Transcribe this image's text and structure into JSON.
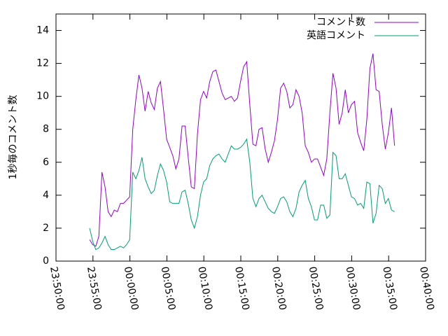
{
  "chart_data": {
    "type": "line",
    "ylabel": "1秒毎のコメント数",
    "x": [
      "23:54:33",
      "23:54:58",
      "23:55:23",
      "23:55:48",
      "23:56:13",
      "23:56:38",
      "23:57:03",
      "23:57:28",
      "23:57:53",
      "23:58:18",
      "23:58:43",
      "23:59:08",
      "23:59:33",
      "23:59:58",
      "00:00:23",
      "00:00:48",
      "00:01:13",
      "00:01:38",
      "00:02:03",
      "00:02:28",
      "00:02:53",
      "00:03:18",
      "00:03:43",
      "00:04:08",
      "00:04:33",
      "00:04:58",
      "00:05:23",
      "00:05:48",
      "00:06:13",
      "00:06:38",
      "00:07:03",
      "00:07:28",
      "00:07:53",
      "00:08:18",
      "00:08:43",
      "00:09:08",
      "00:09:33",
      "00:09:58",
      "00:10:23",
      "00:10:48",
      "00:11:13",
      "00:11:38",
      "00:12:03",
      "00:12:28",
      "00:12:53",
      "00:13:18",
      "00:13:43",
      "00:14:08",
      "00:14:33",
      "00:14:58",
      "00:15:23",
      "00:15:48",
      "00:16:13",
      "00:16:38",
      "00:17:03",
      "00:17:28",
      "00:17:53",
      "00:18:18",
      "00:18:43",
      "00:19:08",
      "00:19:33",
      "00:19:58",
      "00:20:23",
      "00:20:48",
      "00:21:13",
      "00:21:38",
      "00:22:03",
      "00:22:28",
      "00:22:53",
      "00:23:18",
      "00:23:43",
      "00:24:08",
      "00:24:33",
      "00:24:58",
      "00:25:23",
      "00:25:48",
      "00:26:13",
      "00:26:38",
      "00:27:03",
      "00:27:28",
      "00:27:53",
      "00:28:18",
      "00:28:43",
      "00:29:08",
      "00:29:33",
      "00:29:58",
      "00:30:23",
      "00:30:48",
      "00:31:13",
      "00:31:38",
      "00:32:03",
      "00:32:28",
      "00:32:53",
      "00:33:18",
      "00:33:43",
      "00:34:08",
      "00:34:33",
      "00:34:58",
      "00:35:23",
      "00:35:48"
    ],
    "series": [
      {
        "name": "コメント数",
        "color": "#9400d3",
        "values": [
          1.3,
          1.0,
          0.9,
          1.5,
          5.4,
          4.5,
          3.0,
          2.7,
          3.1,
          3.0,
          3.5,
          3.5,
          3.7,
          3.9,
          8.0,
          9.8,
          11.3,
          10.5,
          9.1,
          10.3,
          9.6,
          9.2,
          10.5,
          10.9,
          9.2,
          7.4,
          6.9,
          6.4,
          5.6,
          6.2,
          8.2,
          8.2,
          6.3,
          4.5,
          4.4,
          7.7,
          9.8,
          10.3,
          9.9,
          10.9,
          11.5,
          11.6,
          10.9,
          10.2,
          9.8,
          9.9,
          10.0,
          9.7,
          9.9,
          10.9,
          11.8,
          12.1,
          9.5,
          7.1,
          7.0,
          8.0,
          8.1,
          6.8,
          6.0,
          6.6,
          7.3,
          8.6,
          10.5,
          10.8,
          10.3,
          9.3,
          9.5,
          10.4,
          10.0,
          9.0,
          7.0,
          6.6,
          6.0,
          6.2,
          6.2,
          5.7,
          5.2,
          6.2,
          9.0,
          11.4,
          10.5,
          8.3,
          9.0,
          10.4,
          9.0,
          9.5,
          9.7,
          7.8,
          7.2,
          6.7,
          8.6,
          11.7,
          12.6,
          10.4,
          10.3,
          8.3,
          6.8,
          7.8,
          9.3,
          7.0
        ]
      },
      {
        "name": "英語コメント",
        "color": "#009e73",
        "values": [
          2.0,
          1.2,
          0.7,
          0.8,
          1.1,
          1.5,
          1.0,
          0.7,
          0.7,
          0.8,
          0.9,
          0.8,
          1.0,
          1.3,
          5.4,
          5.0,
          5.5,
          6.3,
          5.0,
          4.5,
          4.1,
          4.3,
          5.2,
          5.9,
          5.5,
          4.8,
          3.6,
          3.5,
          3.5,
          3.5,
          4.2,
          4.3,
          3.5,
          2.5,
          2.0,
          2.7,
          4.0,
          4.8,
          5.0,
          5.8,
          6.2,
          6.4,
          6.5,
          6.2,
          6.0,
          6.5,
          7.0,
          6.8,
          6.8,
          6.9,
          7.1,
          7.4,
          6.0,
          3.8,
          3.3,
          3.8,
          4.0,
          3.6,
          3.2,
          3.0,
          2.9,
          3.3,
          3.8,
          3.9,
          3.6,
          3.0,
          2.7,
          3.2,
          4.2,
          4.6,
          4.9,
          3.8,
          3.3,
          2.5,
          2.5,
          3.4,
          3.4,
          2.6,
          2.8,
          6.6,
          6.4,
          5.0,
          5.0,
          5.3,
          4.6,
          3.9,
          3.8,
          3.4,
          3.5,
          3.2,
          4.8,
          4.7,
          2.3,
          2.9,
          4.6,
          4.4,
          3.5,
          3.8,
          3.1,
          3.0
        ]
      }
    ],
    "xlim": [
      "23:50:00",
      "00:40:00"
    ],
    "xticks": [
      "23:50:00",
      "23:55:00",
      "00:00:00",
      "00:05:00",
      "00:10:00",
      "00:15:00",
      "00:20:00",
      "00:25:00",
      "00:30:00",
      "00:35:00",
      "00:40:00"
    ],
    "ylim": [
      0,
      15
    ],
    "yticks": [
      0,
      2,
      4,
      6,
      8,
      10,
      12,
      14
    ],
    "legend": "top-right",
    "grid": false
  }
}
